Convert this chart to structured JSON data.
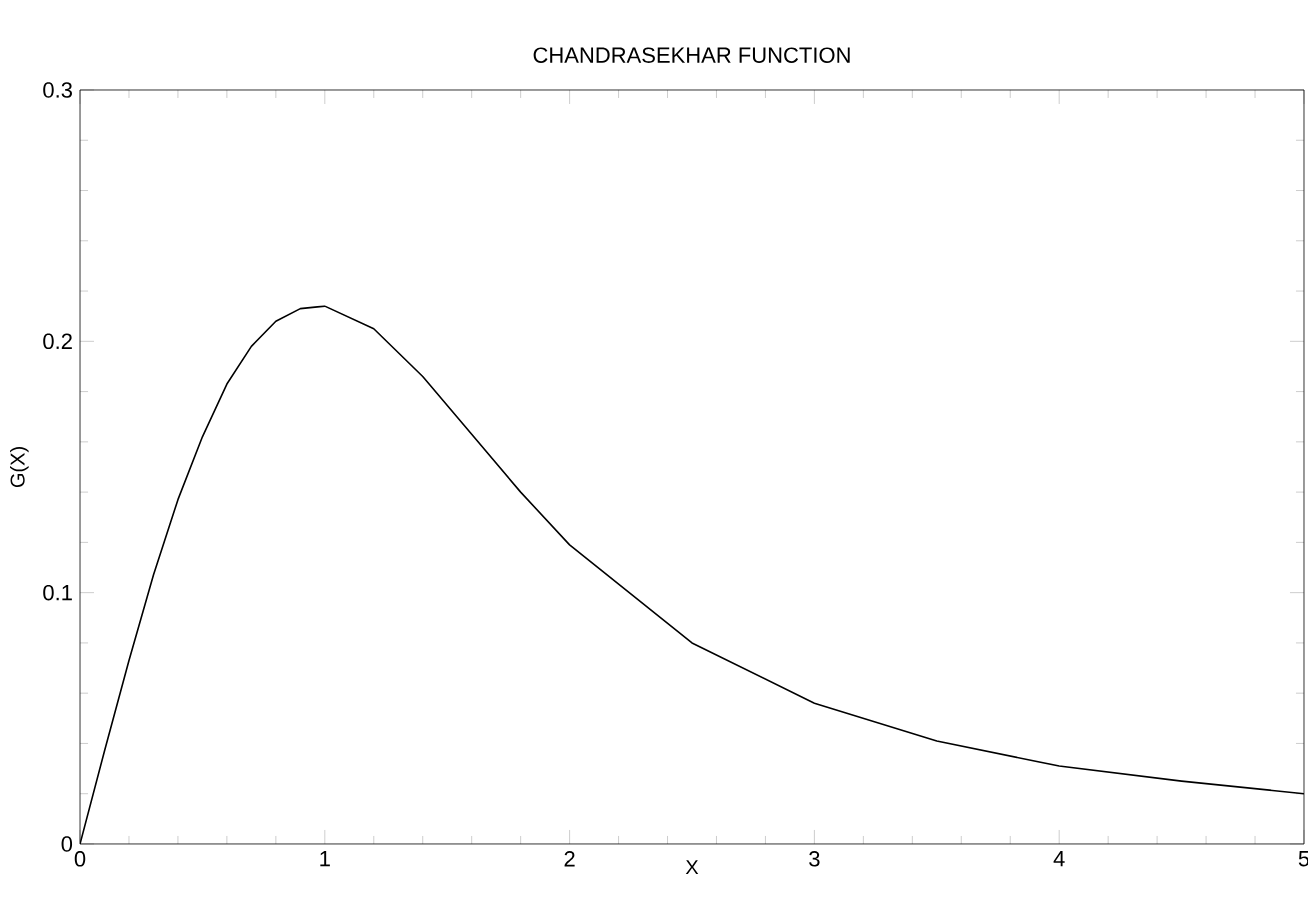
{
  "chart_data": {
    "type": "line",
    "title": "CHANDRASEKHAR FUNCTION",
    "xlabel": "X",
    "ylabel": "G(X)",
    "xlim": [
      0,
      5
    ],
    "ylim": [
      0,
      0.3
    ],
    "xticks": [
      0,
      1,
      2,
      3,
      4,
      5
    ],
    "yticks": [
      0,
      0.1,
      0.2,
      0.3
    ],
    "series": [
      {
        "color": "#000000",
        "x": [
          0,
          0.1,
          0.2,
          0.3,
          0.4,
          0.5,
          0.6,
          0.7,
          0.8,
          0.9,
          1.0,
          1.2,
          1.4,
          1.6,
          1.8,
          2.0,
          2.5,
          3.0,
          3.5,
          4.0,
          4.5,
          5.0
        ],
        "values": [
          0,
          0.037,
          0.073,
          0.107,
          0.137,
          0.162,
          0.183,
          0.198,
          0.208,
          0.213,
          0.214,
          0.205,
          0.186,
          0.163,
          0.14,
          0.119,
          0.08,
          0.056,
          0.041,
          0.031,
          0.025,
          0.02
        ]
      }
    ]
  }
}
